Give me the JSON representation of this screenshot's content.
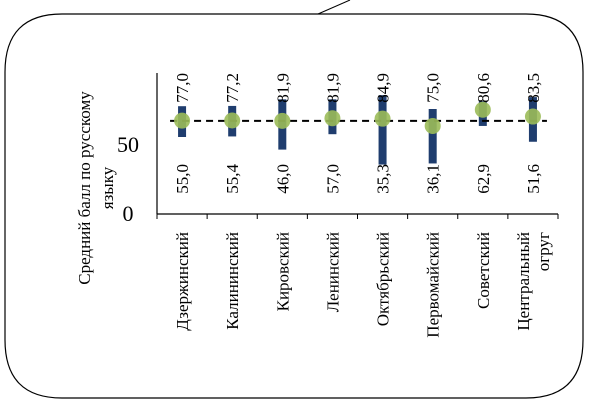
{
  "chart_data": {
    "type": "range-bar-with-markers",
    "title": "",
    "ylabel_lines": [
      "Средний балл  по русскому",
      "языку"
    ],
    "xlabel": "",
    "ylim": [
      0,
      100
    ],
    "y_ticks": [
      "0",
      "50"
    ],
    "y_tick_values": [
      0,
      50
    ],
    "categories": [
      [
        "Дзержинский"
      ],
      [
        "Калининский"
      ],
      [
        "Кировский"
      ],
      [
        "Ленинский"
      ],
      [
        "Октябрьский"
      ],
      [
        "Первомайский"
      ],
      [
        "Советский"
      ],
      [
        "Центральный",
        "огруг"
      ]
    ],
    "series": [
      {
        "role": "max",
        "values": [
          77.0,
          77.2,
          81.9,
          81.9,
          84.9,
          75.0,
          80.6,
          83.5
        ],
        "labels": [
          "77,0",
          "77,2",
          "81,9",
          "81,9",
          "84,9",
          "75,0",
          "80,6",
          "83,5"
        ]
      },
      {
        "role": "min",
        "values": [
          55.0,
          55.4,
          46.0,
          57.0,
          35.3,
          36.1,
          62.9,
          51.6
        ],
        "labels": [
          "55,0",
          "55,4",
          "46,0",
          "57,0",
          "35,3",
          "36,1",
          "62,9",
          "51,6"
        ]
      },
      {
        "role": "average",
        "values": [
          66.7,
          66.8,
          66.5,
          68.4,
          68.1,
          62.9,
          74.5,
          69.6
        ]
      },
      {
        "role": "reference-line",
        "value": 66.5
      }
    ],
    "colors": {
      "range_bar": "#1f3d6e",
      "marker": "#9bbb59",
      "reference_line": "#000000",
      "axis": "#000000",
      "frame": "#000000"
    },
    "grid": false,
    "legend": "none"
  }
}
